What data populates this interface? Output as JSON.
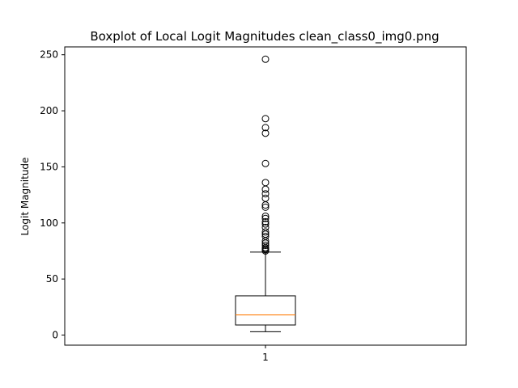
{
  "chart_data": {
    "type": "boxplot",
    "title": "Boxplot of Local Logit Magnitudes clean_class0_img0.png",
    "xlabel": "",
    "ylabel": "Logit Magnitude",
    "categories": [
      "1"
    ],
    "ylim": [
      -9,
      257
    ],
    "yticks": [
      0,
      50,
      100,
      150,
      200,
      250
    ],
    "grid": false,
    "boxes": [
      {
        "category": "1",
        "whisker_low": 3,
        "q1": 9,
        "median": 18,
        "q3": 35,
        "whisker_high": 74,
        "outliers": [
          75,
          76,
          77,
          78,
          80,
          82,
          84,
          88,
          90,
          92,
          96,
          99,
          101,
          104,
          106,
          114,
          116,
          122,
          126,
          130,
          136,
          153,
          180,
          185,
          193,
          246
        ]
      }
    ],
    "colors": {
      "median": "#ff7f0e",
      "box": "#000000",
      "axes": "#000000"
    }
  }
}
